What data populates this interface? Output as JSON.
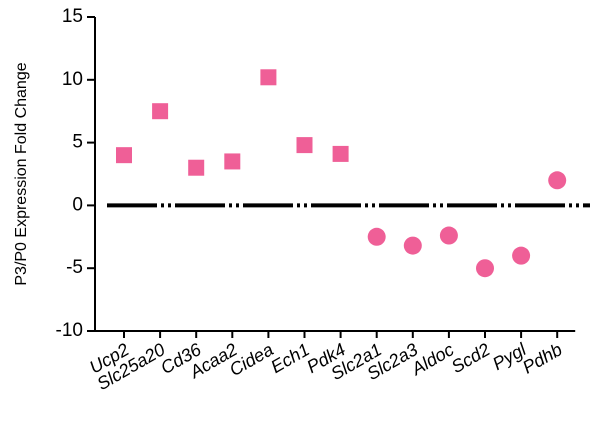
{
  "chart_data": {
    "type": "scatter",
    "y_label": "P3/P0 Expression Fold Change",
    "categories": [
      "Ucp2",
      "Slc25a20",
      "Cd36",
      "Acaa2",
      "Cidea",
      "Ech1",
      "Pdk4",
      "Slc2a1",
      "Slc2a3",
      "Aldoc",
      "Scd2",
      "Pygl",
      "Pdhb"
    ],
    "series": [
      {
        "color": "#ef5f97",
        "marker": "square",
        "values": [
          4,
          7.5,
          3,
          3.5,
          10.2,
          4.8,
          4.1,
          null,
          null,
          null,
          null,
          null,
          null
        ]
      },
      {
        "color": "#ef5f97",
        "marker": "circle",
        "values": [
          null,
          null,
          null,
          null,
          null,
          null,
          null,
          -2.5,
          -3.2,
          -2.4,
          -5,
          -4,
          2
        ]
      }
    ],
    "ylim": [
      -10,
      15
    ],
    "yticks": [
      -10,
      -5,
      0,
      5,
      10,
      15
    ],
    "hline": 0
  }
}
